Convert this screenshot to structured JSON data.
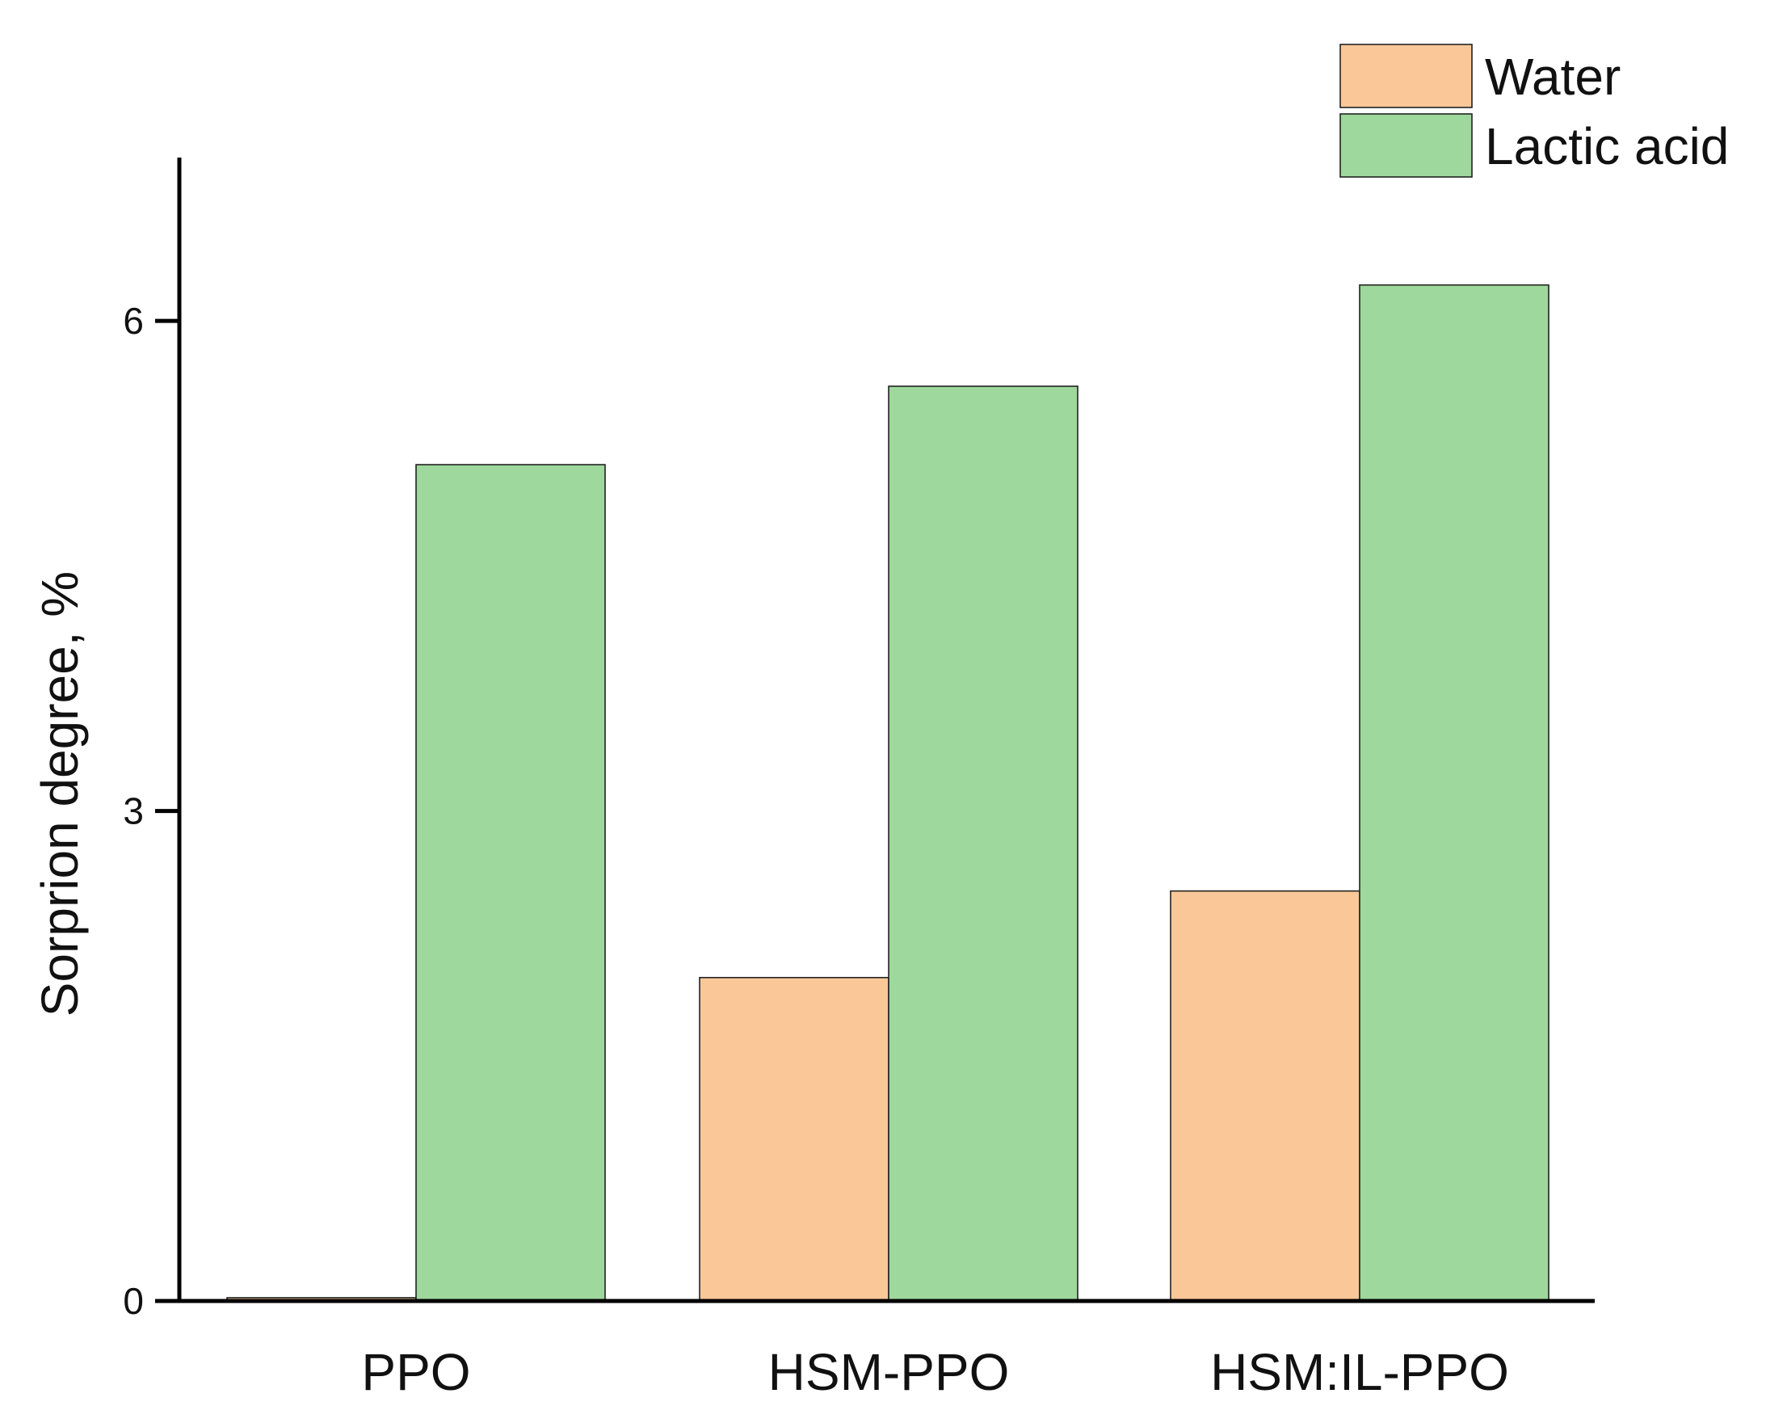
{
  "chart_data": {
    "type": "bar",
    "title": "",
    "xlabel": "",
    "ylabel": "Sorprion degree,  %",
    "categories": [
      "PPO",
      "HSM-PPO",
      "HSM:IL-PPO"
    ],
    "series": [
      {
        "name": "Water",
        "values": [
          0.02,
          1.98,
          2.51
        ],
        "color": "#fac898"
      },
      {
        "name": "Lactic acid",
        "values": [
          5.12,
          5.6,
          6.22
        ],
        "color": "#9fd89c"
      }
    ],
    "ylim": [
      0,
      7
    ],
    "yticks": [
      0,
      3,
      6
    ],
    "ytick_labels": [
      "0",
      "3",
      "6"
    ],
    "grid": false,
    "legend_position": "top-right",
    "bar_edge_color": "#222222",
    "axis_color": "#000000"
  }
}
